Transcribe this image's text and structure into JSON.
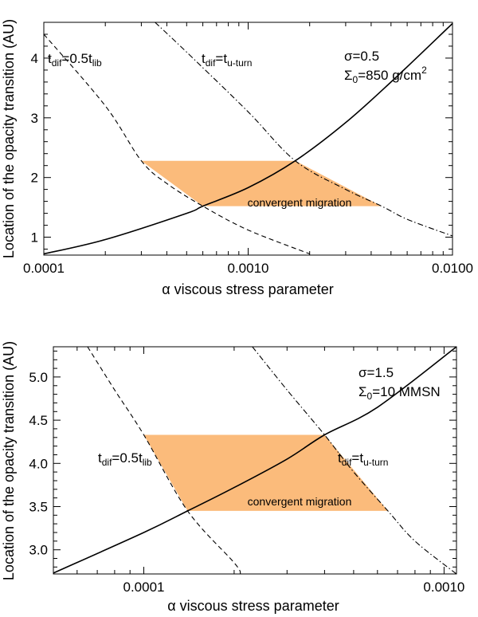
{
  "chart_data": [
    {
      "type": "line",
      "title": "",
      "xlabel": "α viscous stress parameter",
      "ylabel": "Location of the opacity transition (AU)",
      "xscale": "log",
      "xlim": [
        0.0001,
        0.01
      ],
      "ylim": [
        0.7,
        4.6
      ],
      "xticks": [
        0.0001,
        0.001,
        0.01
      ],
      "xtick_labels": [
        "0.0001",
        "0.0010",
        "0.0100"
      ],
      "yticks": [
        1,
        2,
        3,
        4
      ],
      "ytick_labels": [
        "1",
        "2",
        "3",
        "4"
      ],
      "series": [
        {
          "name": "opacity transition",
          "style": "solid",
          "x": [
            0.0001,
            0.0002,
            0.0005,
            0.0006,
            0.001,
            0.0017,
            0.003,
            0.005,
            0.01
          ],
          "y": [
            0.72,
            0.96,
            1.4,
            1.52,
            1.83,
            2.28,
            2.92,
            3.6,
            4.58
          ]
        },
        {
          "name": "t_dif=0.5t_lib",
          "style": "dashed",
          "x": [
            0.0001,
            0.0002,
            0.0003,
            0.0004,
            0.0006,
            0.001,
            0.002
          ],
          "y": [
            4.4,
            3.2,
            2.28,
            1.9,
            1.52,
            1.12,
            0.72
          ]
        },
        {
          "name": "t_dif=t_u-turn",
          "style": "dashdot",
          "x": [
            0.00035,
            0.0005,
            0.001,
            0.0017,
            0.003,
            0.0045,
            0.006,
            0.01
          ],
          "y": [
            4.6,
            4.1,
            3.1,
            2.28,
            1.8,
            1.52,
            1.3,
            1.02
          ]
        }
      ],
      "shaded_region": {
        "label": "convergent migration",
        "color": "#fbbb7b",
        "polygon": [
          [
            0.0003,
            2.28
          ],
          [
            0.0017,
            2.28
          ],
          [
            0.0045,
            1.52
          ],
          [
            0.0006,
            1.52
          ]
        ]
      },
      "annotations": [
        {
          "main": "t",
          "sub": "dif",
          "mid": "=0.5t",
          "sub2": "lib",
          "at": [
            0.0001,
            4.1
          ]
        },
        {
          "main": "t",
          "sub": "dif",
          "mid": "=t",
          "sub2": "u-turn",
          "at": [
            0.00055,
            4.1
          ]
        },
        {
          "text": "σ=0.5",
          "at": [
            0.0033,
            4.25
          ]
        },
        {
          "sigma": "Σ",
          "sub": "0",
          "text": "=850 g/cm",
          "sup": "2",
          "at": [
            0.0033,
            3.85
          ]
        }
      ]
    },
    {
      "type": "line",
      "title": "",
      "xlabel": "α viscous stress parameter",
      "ylabel": "Location of the opacity transition (AU)",
      "xscale": "log",
      "xlim": [
        5e-05,
        0.0011
      ],
      "ylim": [
        2.72,
        5.35
      ],
      "xticks": [
        0.0001,
        0.001
      ],
      "xtick_labels": [
        "0.0001",
        "0.0010"
      ],
      "yticks": [
        3.0,
        3.5,
        4.0,
        4.5,
        5.0
      ],
      "ytick_labels": [
        "3.0",
        "3.5",
        "4.0",
        "4.5",
        "5.0"
      ],
      "series": [
        {
          "name": "opacity transition",
          "style": "solid",
          "x": [
            5e-05,
            0.0001,
            0.00014,
            0.0002,
            0.0003,
            0.0004,
            0.0006,
            0.0011
          ],
          "y": [
            2.73,
            3.2,
            3.45,
            3.72,
            4.05,
            4.33,
            4.65,
            5.35
          ]
        },
        {
          "name": "t_dif=0.5t_lib",
          "style": "dashed",
          "x": [
            6.5e-05,
            8e-05,
            0.0001,
            0.00014,
            0.0002,
            0.00021
          ],
          "y": [
            5.35,
            4.85,
            4.33,
            3.45,
            2.85,
            2.72
          ]
        },
        {
          "name": "t_dif=t_u-turn",
          "style": "dashdot",
          "x": [
            0.00023,
            0.0003,
            0.0004,
            0.0005,
            0.00065,
            0.0008,
            0.0011
          ],
          "y": [
            5.35,
            4.85,
            4.33,
            3.9,
            3.45,
            3.1,
            2.72
          ]
        }
      ],
      "shaded_region": {
        "label": "convergent migration",
        "color": "#fbbb7b",
        "polygon": [
          [
            0.0001,
            4.33
          ],
          [
            0.0004,
            4.33
          ],
          [
            0.00065,
            3.45
          ],
          [
            0.00014,
            3.45
          ]
        ]
      },
      "annotations": [
        {
          "main": "t",
          "sub": "dif",
          "mid": "=0.5t",
          "sub2": "lib",
          "at": [
            7.1e-05,
            3.98
          ]
        },
        {
          "main": "t",
          "sub": "dif",
          "mid": "=t",
          "sub2": "u-turn",
          "at": [
            0.00045,
            3.98
          ]
        },
        {
          "text": "σ=1.5",
          "at": [
            0.00045,
            5.07
          ]
        },
        {
          "sigma": "Σ",
          "sub": "0",
          "text": "=10 MMSN",
          "at": [
            0.00045,
            4.85
          ]
        }
      ]
    }
  ]
}
